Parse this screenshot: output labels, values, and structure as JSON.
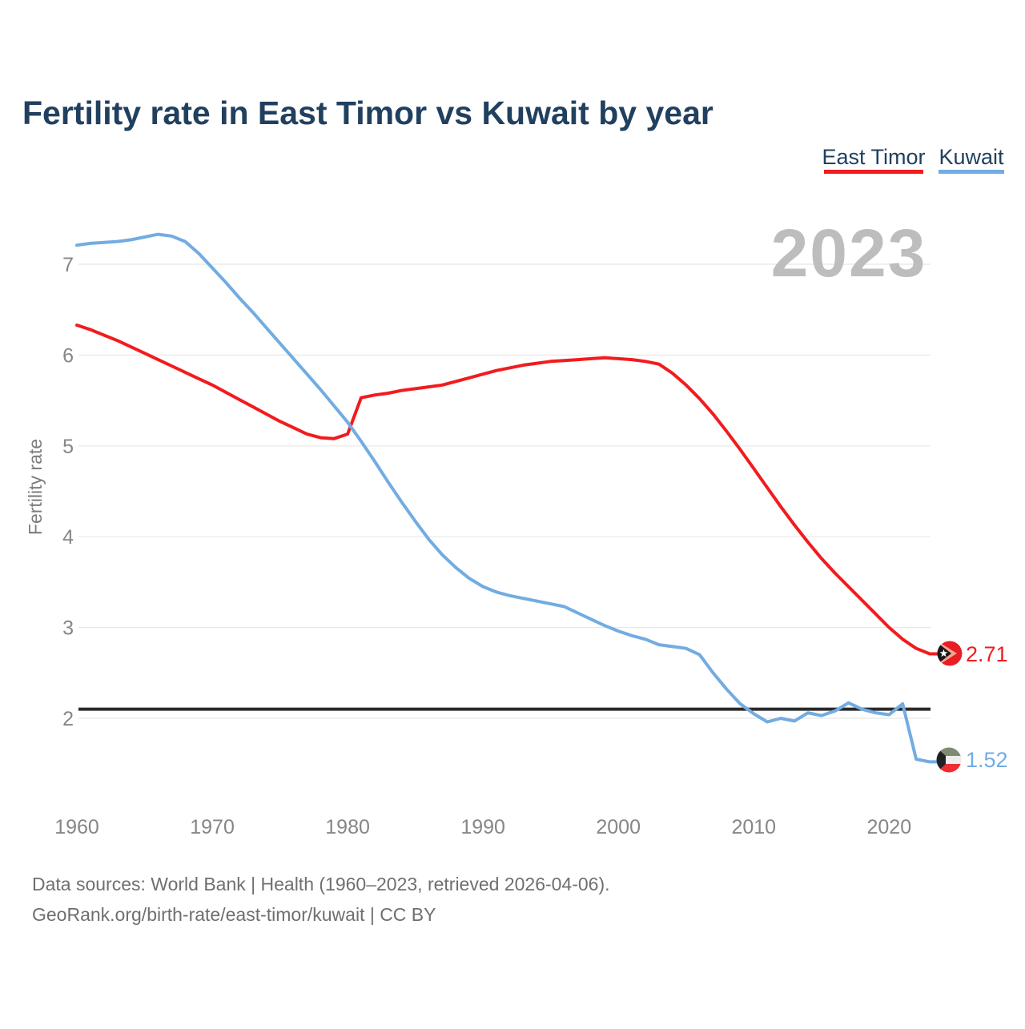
{
  "title": "Fertility rate in East Timor vs Kuwait by year",
  "watermark": "2023",
  "legend": {
    "items": [
      {
        "label": "East Timor",
        "color": "#f21b1e"
      },
      {
        "label": "Kuwait",
        "color": "#72ace1"
      }
    ]
  },
  "end_labels": {
    "east_timor": "2.71",
    "kuwait": "1.52"
  },
  "footer": {
    "line1": "Data sources: World Bank | Health (1960–2023, retrieved 2026-04-06).",
    "line2": "GeoRank.org/birth-rate/east-timor/kuwait | CC BY"
  },
  "chart_data": {
    "type": "line",
    "title": "Fertility rate in East Timor vs Kuwait by year",
    "xlabel": "",
    "ylabel": "Fertility rate",
    "x_range": [
      1960,
      2023
    ],
    "x_ticks": [
      1960,
      1970,
      1980,
      1990,
      2000,
      2010,
      2020
    ],
    "y_ticks": [
      2,
      3,
      4,
      5,
      6,
      7
    ],
    "ylim": [
      1.4,
      7.5
    ],
    "grid": "horizontal",
    "legend_position": "top-right",
    "reference_line": {
      "value": 2.1,
      "color": "#2a2a2a"
    },
    "years": [
      1960,
      1961,
      1962,
      1963,
      1964,
      1965,
      1966,
      1967,
      1968,
      1969,
      1970,
      1971,
      1972,
      1973,
      1974,
      1975,
      1976,
      1977,
      1978,
      1979,
      1980,
      1981,
      1982,
      1983,
      1984,
      1985,
      1986,
      1987,
      1988,
      1989,
      1990,
      1991,
      1992,
      1993,
      1994,
      1995,
      1996,
      1997,
      1998,
      1999,
      2000,
      2001,
      2002,
      2003,
      2004,
      2005,
      2006,
      2007,
      2008,
      2009,
      2010,
      2011,
      2012,
      2013,
      2014,
      2015,
      2016,
      2017,
      2018,
      2019,
      2020,
      2021,
      2022,
      2023
    ],
    "series": [
      {
        "name": "East Timor",
        "color": "#f21b1e",
        "end_value_label": "2.71",
        "values": [
          6.33,
          6.28,
          6.22,
          6.16,
          6.09,
          6.02,
          5.95,
          5.88,
          5.81,
          5.74,
          5.67,
          5.59,
          5.51,
          5.43,
          5.35,
          5.27,
          5.2,
          5.13,
          5.09,
          5.08,
          5.13,
          5.53,
          5.56,
          5.58,
          5.61,
          5.63,
          5.65,
          5.67,
          5.71,
          5.75,
          5.79,
          5.83,
          5.86,
          5.89,
          5.91,
          5.93,
          5.94,
          5.95,
          5.96,
          5.97,
          5.96,
          5.95,
          5.93,
          5.9,
          5.8,
          5.67,
          5.52,
          5.35,
          5.16,
          4.96,
          4.75,
          4.54,
          4.33,
          4.13,
          3.94,
          3.76,
          3.6,
          3.45,
          3.3,
          3.15,
          3.0,
          2.87,
          2.77,
          2.71
        ]
      },
      {
        "name": "Kuwait",
        "color": "#72ace1",
        "end_value_label": "1.52",
        "values": [
          7.21,
          7.23,
          7.24,
          7.25,
          7.27,
          7.3,
          7.33,
          7.31,
          7.25,
          7.12,
          6.96,
          6.8,
          6.63,
          6.47,
          6.3,
          6.13,
          5.96,
          5.79,
          5.62,
          5.44,
          5.26,
          5.05,
          4.83,
          4.6,
          4.38,
          4.17,
          3.97,
          3.8,
          3.66,
          3.54,
          3.45,
          3.39,
          3.35,
          3.32,
          3.29,
          3.26,
          3.23,
          3.16,
          3.09,
          3.02,
          2.96,
          2.91,
          2.87,
          2.81,
          2.79,
          2.77,
          2.7,
          2.5,
          2.32,
          2.16,
          2.05,
          1.96,
          2.0,
          1.97,
          2.06,
          2.03,
          2.08,
          2.17,
          2.1,
          2.06,
          2.04,
          2.16,
          1.55,
          1.52
        ]
      }
    ]
  }
}
